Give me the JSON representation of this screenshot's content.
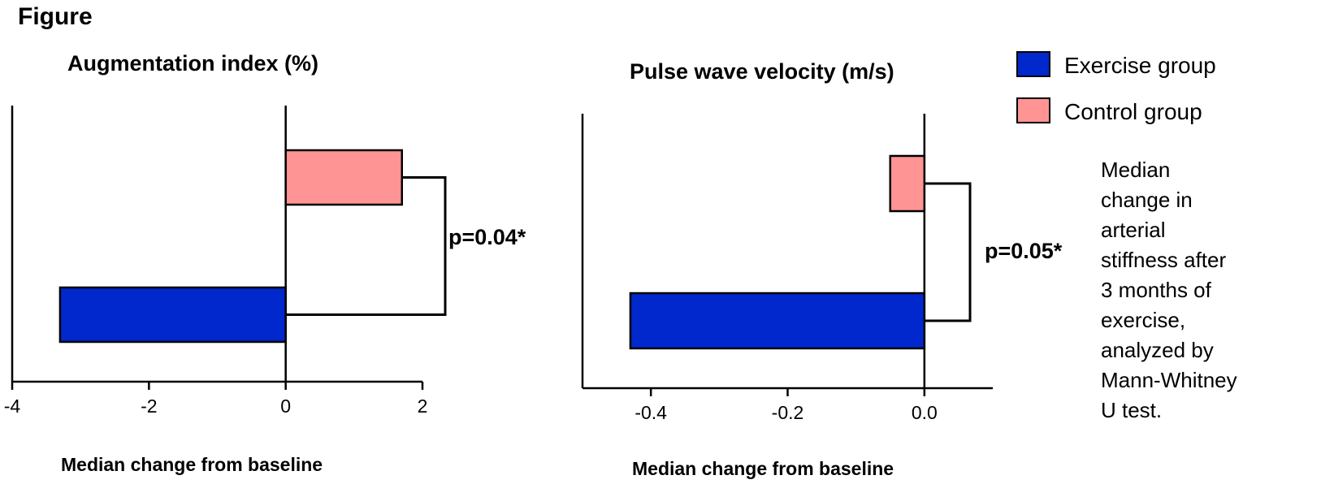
{
  "figure_label": "Figure",
  "colors": {
    "exercise": "#0028CC",
    "control": "#FF9494",
    "axis": "#000000"
  },
  "legend": {
    "items": [
      {
        "label": "Exercise group",
        "color": "#0028CC"
      },
      {
        "label": "Control group",
        "color": "#FF9494"
      }
    ]
  },
  "caption_lines": [
    "Median",
    "change in",
    "arterial",
    "stiffness after",
    "3 months of",
    "exercise,",
    "analyzed by",
    "Mann-Whitney",
    "U test."
  ],
  "chart_data": [
    {
      "type": "bar",
      "orientation": "horizontal",
      "title": "Augmentation index (%)",
      "xlabel": "Median change from baseline",
      "ylabel": "",
      "xlim": [
        -4,
        2
      ],
      "ticks": [
        -4,
        -2,
        0,
        2
      ],
      "tick_labels": [
        "-4",
        "-2",
        "0",
        "2"
      ],
      "series": [
        {
          "name": "Control group",
          "value": 1.7
        },
        {
          "name": "Exercise group",
          "value": -3.3
        }
      ],
      "annotation": "p=0.04*",
      "grid": false
    },
    {
      "type": "bar",
      "orientation": "horizontal",
      "title": "Pulse wave velocity (m/s)",
      "xlabel": "Median change from baseline",
      "ylabel": "",
      "xlim": [
        -0.5,
        0.1
      ],
      "ticks": [
        -0.4,
        -0.2,
        0.0
      ],
      "tick_labels": [
        "-0.4",
        "-0.2",
        "0.0"
      ],
      "series": [
        {
          "name": "Control group",
          "value": -0.05
        },
        {
          "name": "Exercise group",
          "value": -0.43
        }
      ],
      "annotation": "p=0.05*",
      "grid": false
    }
  ]
}
